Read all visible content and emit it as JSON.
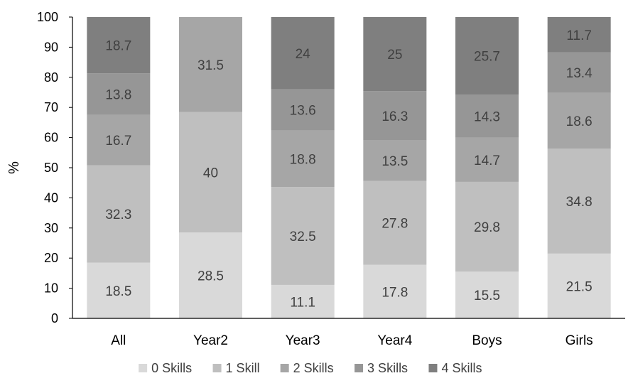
{
  "chart_data": {
    "type": "bar",
    "stacked": true,
    "title": "",
    "xlabel": "",
    "ylabel": "%",
    "ylim": [
      0,
      100
    ],
    "yticks": [
      0,
      10,
      20,
      30,
      40,
      50,
      60,
      70,
      80,
      90,
      100
    ],
    "grid": false,
    "legend_position": "bottom",
    "categories": [
      "All",
      "Year2",
      "Year3",
      "Year4",
      "Boys",
      "Girls"
    ],
    "series": [
      {
        "name": "0 Skills",
        "color": "#d9d9d9",
        "values": [
          18.5,
          28.5,
          11.1,
          17.8,
          15.5,
          21.5
        ]
      },
      {
        "name": "1 Skill",
        "color": "#bfbfbf",
        "values": [
          32.3,
          40,
          32.5,
          27.8,
          29.8,
          34.8
        ]
      },
      {
        "name": "2 Skills",
        "color": "#a6a6a6",
        "values": [
          16.7,
          31.5,
          18.8,
          13.5,
          14.7,
          18.6
        ]
      },
      {
        "name": "3 Skills",
        "color": "#969696",
        "values": [
          13.8,
          null,
          13.6,
          16.3,
          14.3,
          13.4
        ]
      },
      {
        "name": "4 Skills",
        "color": "#7f7f7f",
        "values": [
          18.7,
          null,
          24,
          25,
          25.7,
          11.7
        ]
      }
    ]
  }
}
